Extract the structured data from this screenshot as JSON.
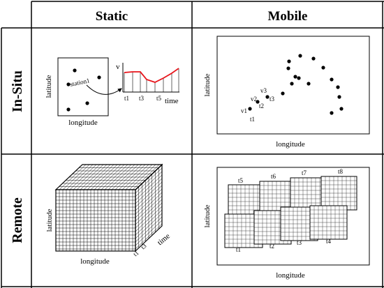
{
  "columns": {
    "static": "Static",
    "mobile": "Mobile"
  },
  "rows": {
    "insitu": "In-Situ",
    "remote": "Remote"
  },
  "axes": {
    "latitude": "latitude",
    "longitude": "longitude",
    "time": "time"
  },
  "insitu_static": {
    "station_label": "station1",
    "value_label": "v",
    "time_ticks": [
      "t1",
      "t3",
      "t5"
    ]
  },
  "insitu_mobile": {
    "point_labels": [
      "v1",
      "t1",
      "v2",
      "t2",
      "v3",
      "t3"
    ]
  },
  "remote_static": {
    "time_ticks": [
      "t1",
      "t3"
    ]
  },
  "remote_mobile": {
    "swath_labels": [
      "t1",
      "t2",
      "t3",
      "t4",
      "t5",
      "t6",
      "t7",
      "t8"
    ]
  },
  "colors": {
    "line": "#000000",
    "series": "#e8141b"
  }
}
